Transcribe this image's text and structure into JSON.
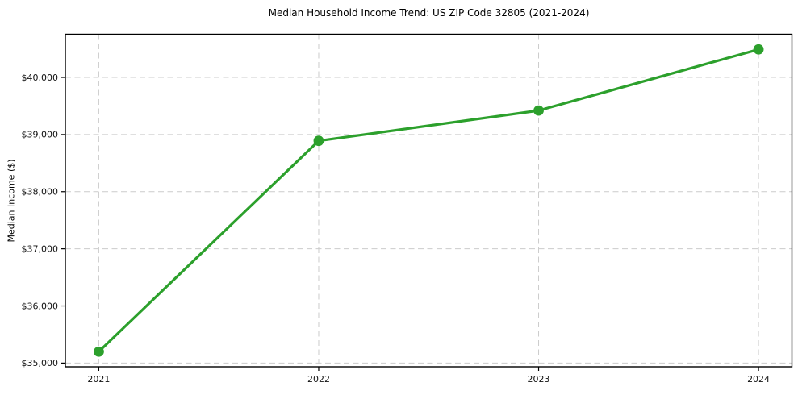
{
  "chart_data": {
    "type": "line",
    "title": "Median Household Income Trend: US ZIP Code 32805 (2021-2024)",
    "xlabel": "",
    "ylabel": "Median Income ($)",
    "x_categories": [
      "2021",
      "2022",
      "2023",
      "2024"
    ],
    "series": [
      {
        "name": "Median Household Income",
        "color": "#2ca02c",
        "values": [
          35200,
          38890,
          39420,
          40490
        ]
      }
    ],
    "y_ticks": [
      35000,
      36000,
      37000,
      38000,
      39000,
      40000
    ],
    "y_tick_labels": [
      "$35,000",
      "$36,000",
      "$37,000",
      "$38,000",
      "$39,000",
      "$40,000"
    ],
    "ylim": [
      34935,
      40755
    ],
    "grid": true,
    "grid_style": "dashed",
    "grid_color": "#cccccc",
    "spine_color": "#000000",
    "marker": "circle",
    "legend_position": "none"
  }
}
